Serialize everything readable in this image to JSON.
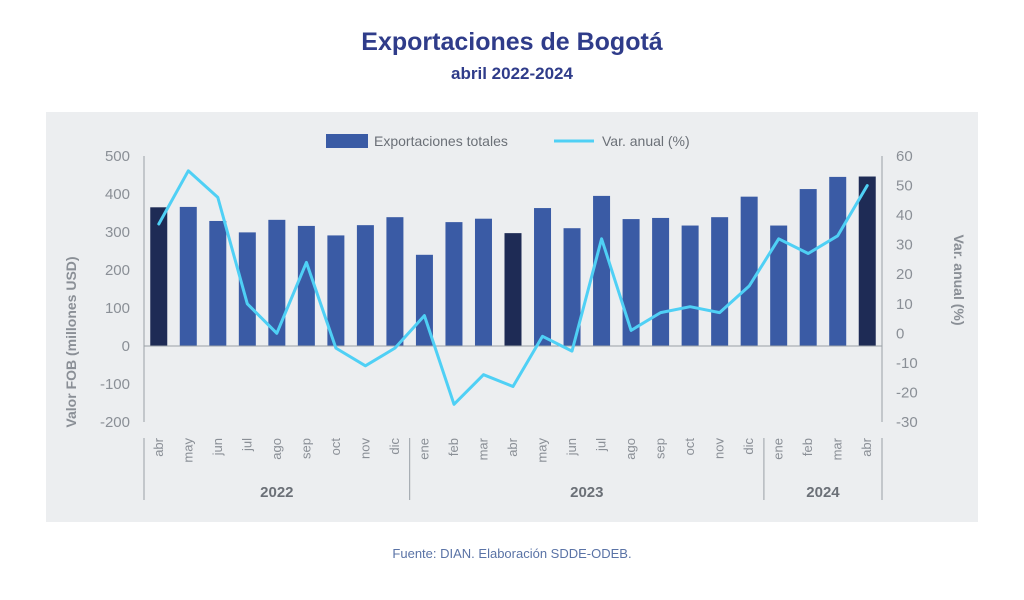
{
  "title": "Exportaciones de Bogotá",
  "subtitle": "abril 2022-2024",
  "source": "Fuente: DIAN. Elaboración SDDE-ODEB.",
  "colors": {
    "bar": "#3a5ba5",
    "bar_highlight": "#1e2b55",
    "line": "#4fd0f5",
    "axis_text": "#8a8f96",
    "title": "#2f3c8a"
  },
  "chart_data": {
    "type": "bar",
    "legend_position": "top",
    "grid": false,
    "series": [
      {
        "name": "Exportaciones totales",
        "type": "bar",
        "axis": "left",
        "values": [
          365,
          366,
          329,
          299,
          332,
          316,
          291,
          318,
          339,
          240,
          326,
          335,
          297,
          363,
          310,
          395,
          334,
          337,
          317,
          339,
          393,
          317,
          413,
          445,
          446
        ]
      },
      {
        "name": "Var. anual (%)",
        "type": "line",
        "axis": "right",
        "values": [
          37,
          55,
          46,
          10,
          0,
          24,
          -5,
          -11,
          -5,
          6,
          -24,
          -14,
          -18,
          -1,
          -6,
          32,
          1,
          7,
          9,
          7,
          16,
          32,
          27,
          33,
          50
        ]
      }
    ],
    "highlight_indices": [
      0,
      12,
      24
    ],
    "categories": [
      "abr",
      "may",
      "jun",
      "jul",
      "ago",
      "sep",
      "oct",
      "nov",
      "dic",
      "ene",
      "feb",
      "mar",
      "abr",
      "may",
      "jun",
      "jul",
      "ago",
      "sep",
      "oct",
      "nov",
      "dic",
      "ene",
      "feb",
      "mar",
      "abr"
    ],
    "year_groups": [
      {
        "label": "2022",
        "start": 0,
        "end": 8
      },
      {
        "label": "2023",
        "start": 9,
        "end": 20
      },
      {
        "label": "2024",
        "start": 21,
        "end": 24
      }
    ],
    "ylabel": "Valor FOB (millones USD)",
    "ylabel_right": "Var. anual (%)",
    "ylim": [
      -200,
      500
    ],
    "ylim_right": [
      -30,
      60
    ],
    "yticks": [
      -200,
      -100,
      0,
      100,
      200,
      300,
      400,
      500
    ],
    "yticks_right": [
      -30,
      -20,
      -10,
      0,
      10,
      20,
      30,
      40,
      50,
      60
    ]
  }
}
